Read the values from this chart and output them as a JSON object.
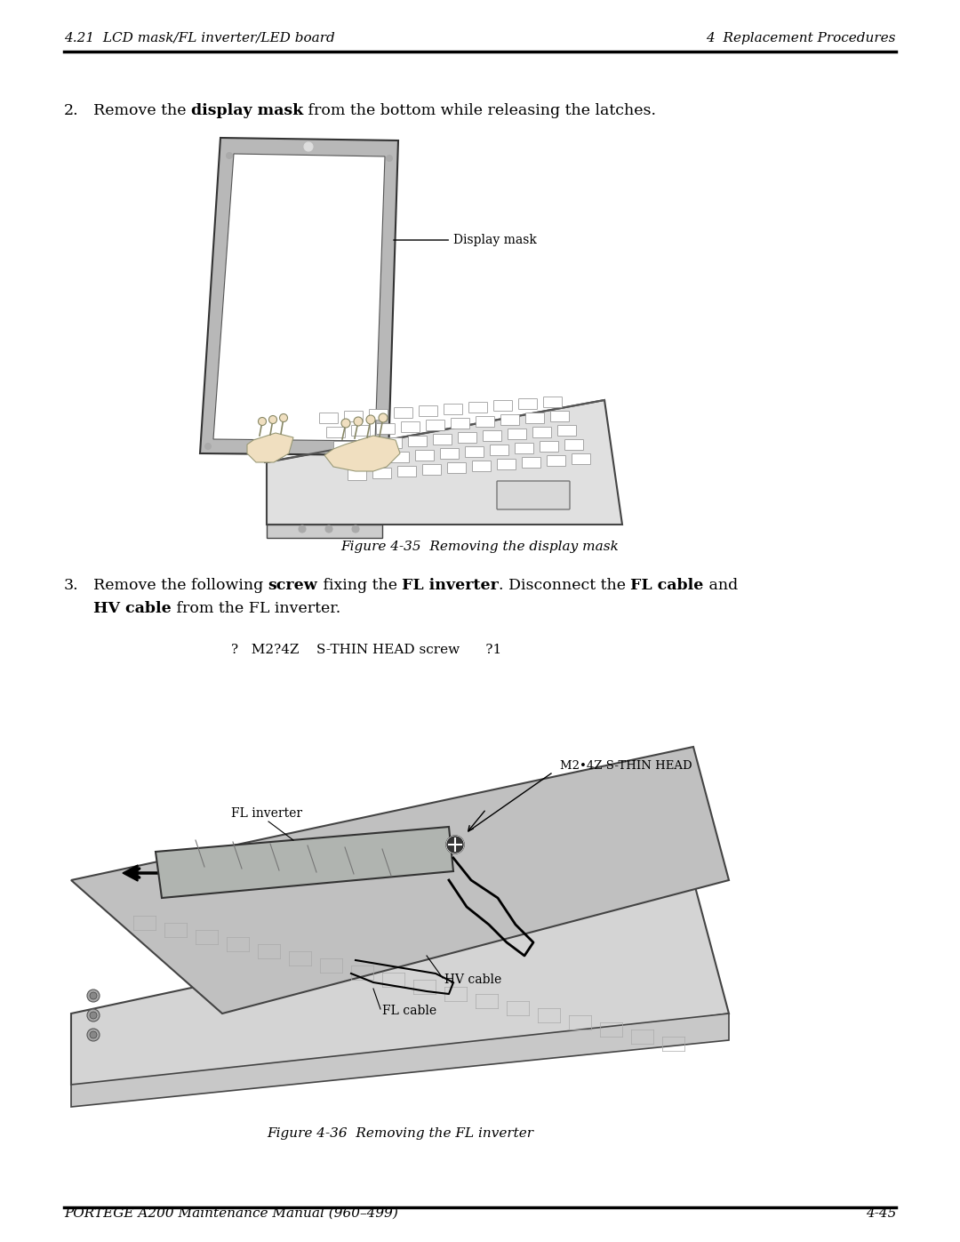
{
  "page_bg": "#ffffff",
  "header_left": "4.21  LCD mask/FL inverter/LED board",
  "header_right": "4  Replacement Procedures",
  "footer_left": "PORTEGE A200 Maintenance Manual (960–499)",
  "footer_right": "4-45",
  "fig35_caption": "Figure 4-35  Removing the display mask",
  "fig36_caption": "Figure 4-36  Removing the FL inverter",
  "bullet_line": "?   M2?4Z    S-THIN HEAD screw      ?1",
  "header_fontsize": 11,
  "footer_fontsize": 11,
  "body_fontsize": 12.5,
  "caption_fontsize": 11
}
